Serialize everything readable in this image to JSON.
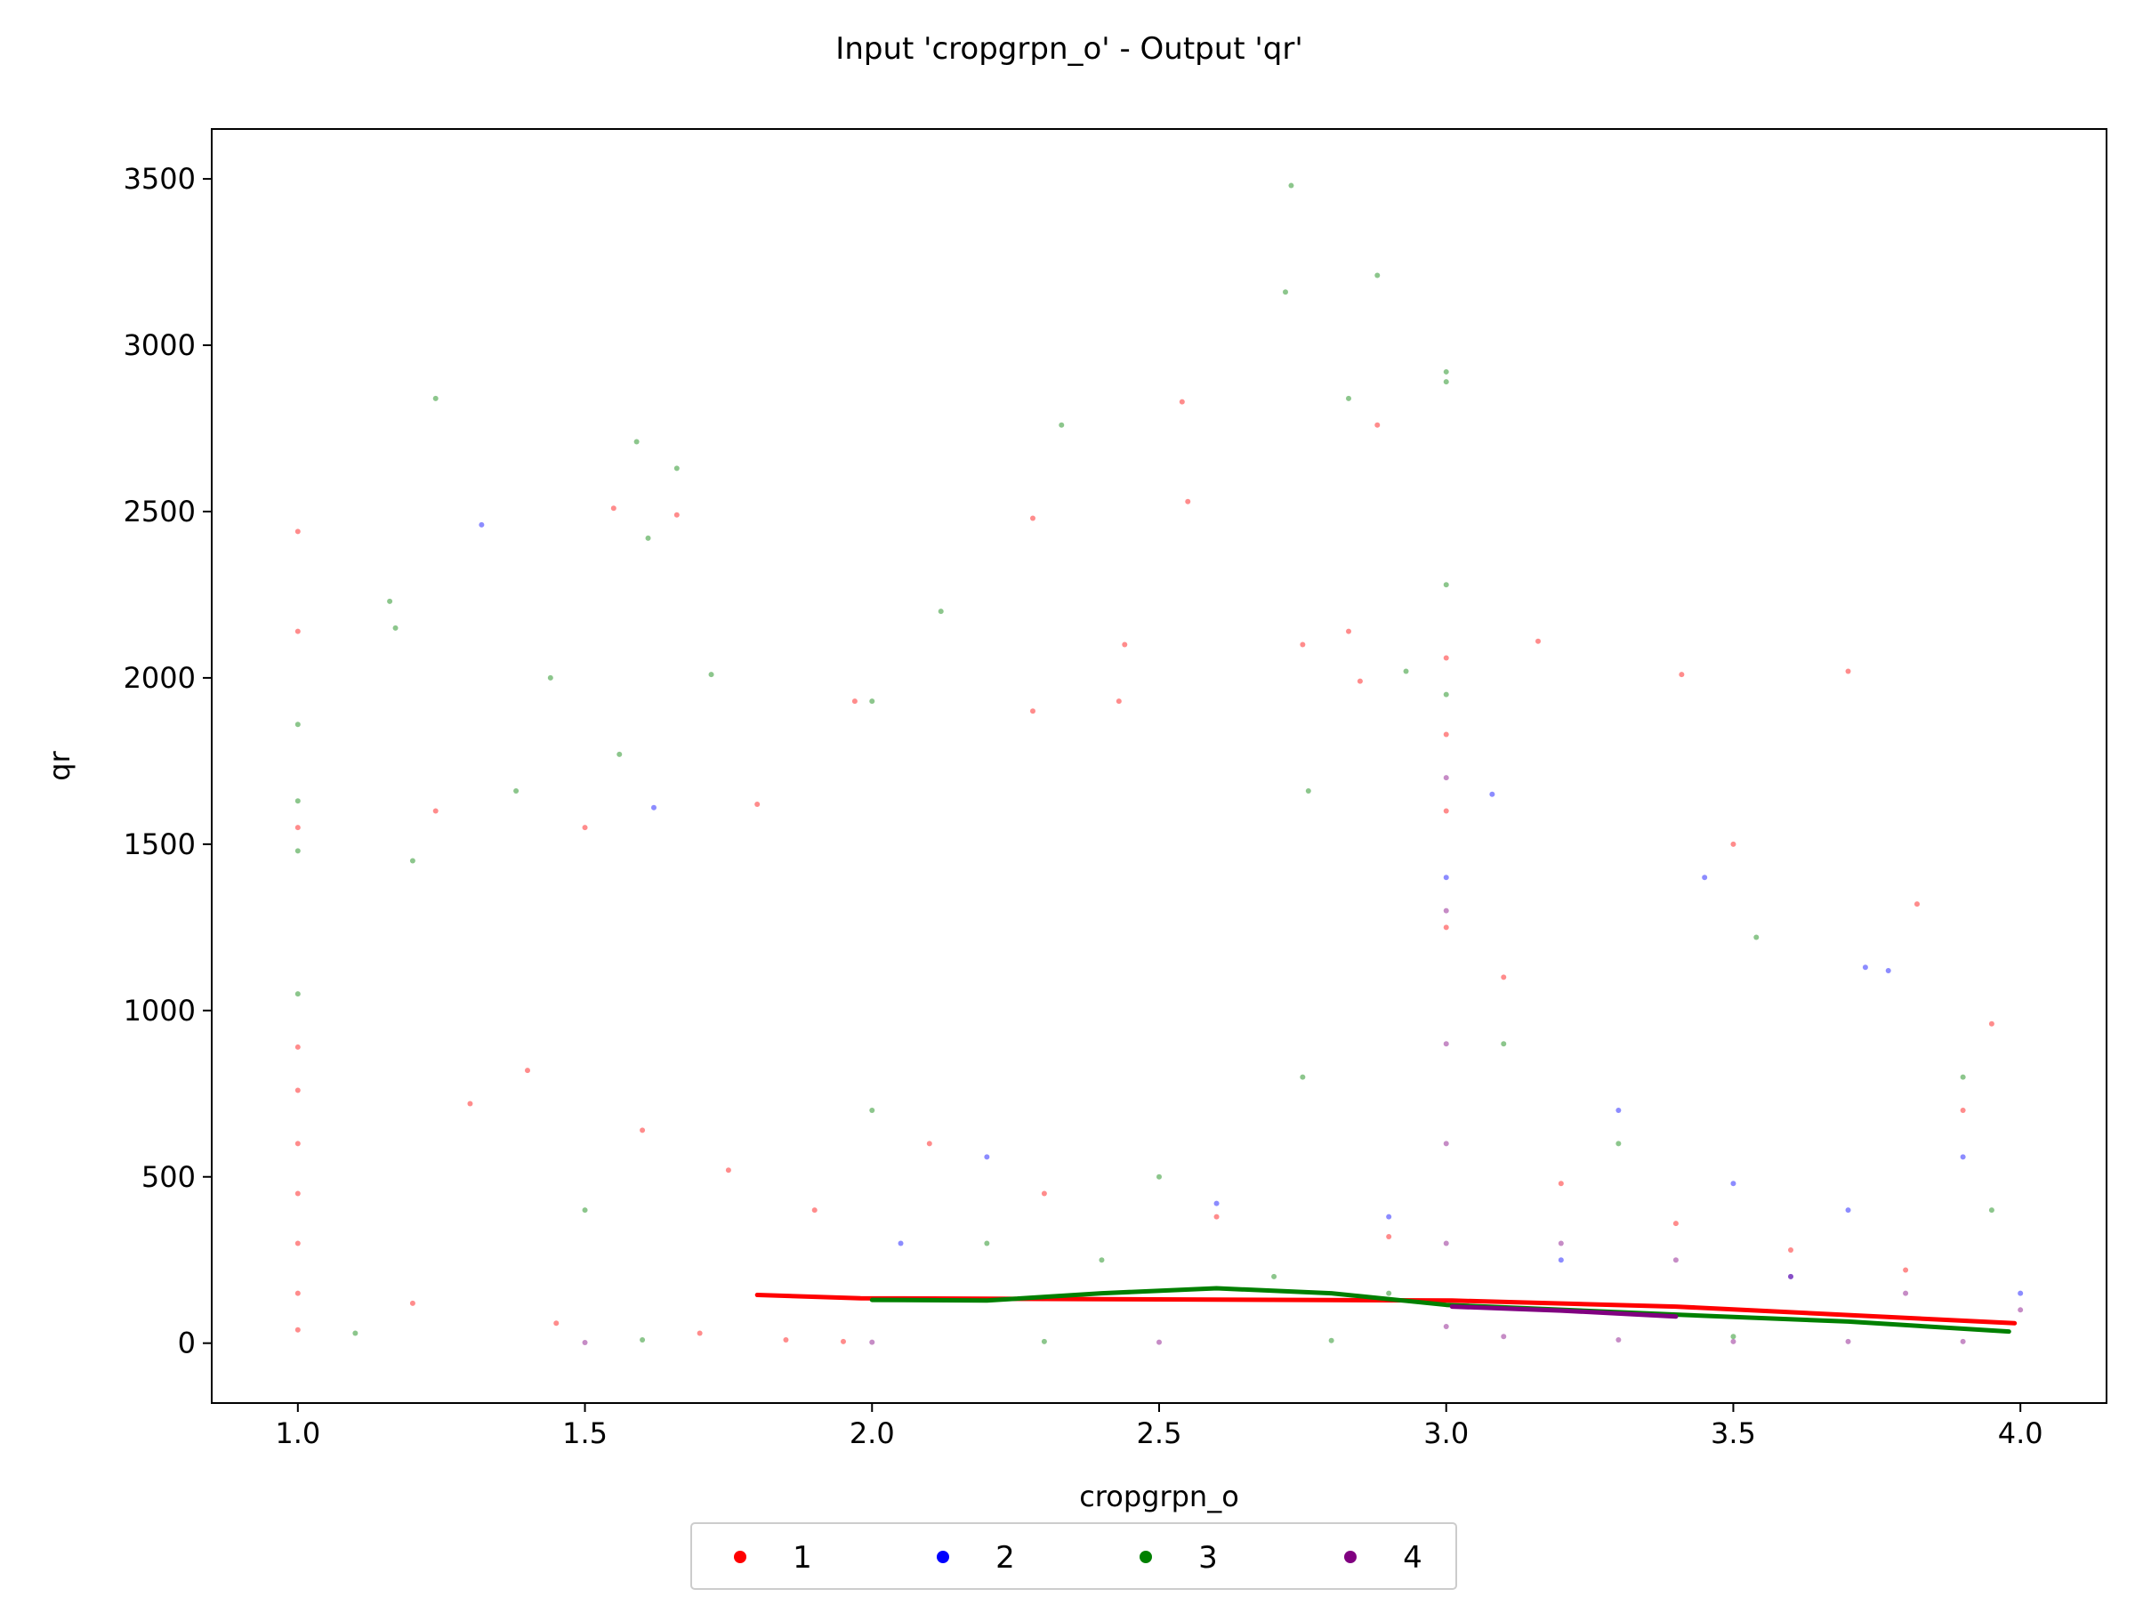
{
  "chart_data": {
    "type": "scatter",
    "title": "Input 'cropgrpn_o' - Output 'qr'",
    "xlabel": "cropgrpn_o",
    "ylabel": "qr",
    "xlim": [
      0.85,
      4.15
    ],
    "ylim": [
      -180,
      3650
    ],
    "xticks": [
      1.0,
      1.5,
      2.0,
      2.5,
      3.0,
      3.5,
      4.0
    ],
    "xtick_labels": [
      "1.0",
      "1.5",
      "2.0",
      "2.5",
      "3.0",
      "3.5",
      "4.0"
    ],
    "yticks": [
      0,
      500,
      1000,
      1500,
      2000,
      2500,
      3000,
      3500
    ],
    "ytick_labels": [
      "0",
      "500",
      "1000",
      "1500",
      "2000",
      "2500",
      "3000",
      "3500"
    ],
    "grid": false,
    "legend_position": "bottom-center",
    "series": [
      {
        "name": "1",
        "color": "#ff0000",
        "points": [
          [
            1.0,
            2440
          ],
          [
            1.0,
            2140
          ],
          [
            1.0,
            1550
          ],
          [
            1.0,
            890
          ],
          [
            1.0,
            760
          ],
          [
            1.0,
            600
          ],
          [
            1.0,
            450
          ],
          [
            1.0,
            300
          ],
          [
            1.0,
            150
          ],
          [
            1.0,
            40
          ],
          [
            1.55,
            2510
          ],
          [
            1.66,
            2490
          ],
          [
            1.24,
            1600
          ],
          [
            1.5,
            1550
          ],
          [
            1.8,
            1620
          ],
          [
            1.97,
            1930
          ],
          [
            2.28,
            1900
          ],
          [
            2.43,
            1930
          ],
          [
            2.44,
            2100
          ],
          [
            2.54,
            2830
          ],
          [
            2.55,
            2530
          ],
          [
            2.28,
            2480
          ],
          [
            2.88,
            2760
          ],
          [
            2.75,
            2100
          ],
          [
            2.83,
            2140
          ],
          [
            2.85,
            1990
          ],
          [
            3.0,
            2060
          ],
          [
            3.0,
            1830
          ],
          [
            3.0,
            1600
          ],
          [
            3.0,
            1250
          ],
          [
            3.1,
            1100
          ],
          [
            3.16,
            2110
          ],
          [
            3.41,
            2010
          ],
          [
            3.5,
            1500
          ],
          [
            3.82,
            1320
          ],
          [
            3.7,
            2020
          ],
          [
            3.95,
            960
          ],
          [
            1.3,
            720
          ],
          [
            1.4,
            820
          ],
          [
            1.6,
            640
          ],
          [
            1.75,
            520
          ],
          [
            1.9,
            400
          ],
          [
            2.1,
            600
          ],
          [
            2.3,
            450
          ],
          [
            2.6,
            380
          ],
          [
            2.9,
            320
          ],
          [
            3.2,
            480
          ],
          [
            3.4,
            360
          ],
          [
            3.6,
            280
          ],
          [
            3.8,
            220
          ],
          [
            3.9,
            700
          ],
          [
            1.2,
            120
          ],
          [
            1.45,
            60
          ],
          [
            1.7,
            30
          ],
          [
            1.85,
            10
          ],
          [
            1.95,
            5
          ]
        ],
        "trend": [
          [
            1.8,
            145
          ],
          [
            1.98,
            135
          ],
          [
            3.01,
            128
          ],
          [
            3.4,
            110
          ],
          [
            3.99,
            60
          ]
        ]
      },
      {
        "name": "2",
        "color": "#0000ff",
        "points": [
          [
            1.32,
            2460
          ],
          [
            1.62,
            1610
          ],
          [
            3.08,
            1650
          ],
          [
            3.45,
            1400
          ],
          [
            3.77,
            1120
          ],
          [
            3.73,
            1130
          ],
          [
            3.0,
            1400
          ],
          [
            3.3,
            700
          ],
          [
            2.2,
            560
          ],
          [
            2.6,
            420
          ],
          [
            3.5,
            480
          ],
          [
            3.9,
            560
          ],
          [
            3.7,
            400
          ],
          [
            2.05,
            300
          ],
          [
            2.9,
            380
          ],
          [
            3.2,
            250
          ],
          [
            3.6,
            200
          ],
          [
            4.0,
            150
          ]
        ],
        "trend": []
      },
      {
        "name": "3",
        "color": "#008000",
        "points": [
          [
            2.73,
            3480
          ],
          [
            2.72,
            3160
          ],
          [
            2.88,
            3210
          ],
          [
            3.0,
            2920
          ],
          [
            3.0,
            2890
          ],
          [
            1.24,
            2840
          ],
          [
            2.33,
            2760
          ],
          [
            2.83,
            2840
          ],
          [
            1.59,
            2710
          ],
          [
            1.66,
            2630
          ],
          [
            1.61,
            2420
          ],
          [
            1.16,
            2230
          ],
          [
            1.17,
            2150
          ],
          [
            2.12,
            2200
          ],
          [
            1.72,
            2010
          ],
          [
            1.44,
            2000
          ],
          [
            2.0,
            1930
          ],
          [
            3.0,
            2280
          ],
          [
            1.0,
            1860
          ],
          [
            1.0,
            1630
          ],
          [
            1.0,
            1480
          ],
          [
            1.56,
            1770
          ],
          [
            2.93,
            2020
          ],
          [
            3.0,
            1950
          ],
          [
            1.38,
            1660
          ],
          [
            1.2,
            1450
          ],
          [
            2.76,
            1660
          ],
          [
            3.54,
            1220
          ],
          [
            1.0,
            1050
          ],
          [
            3.3,
            600
          ],
          [
            2.5,
            500
          ],
          [
            2.0,
            700
          ],
          [
            1.5,
            400
          ],
          [
            2.75,
            800
          ],
          [
            3.1,
            900
          ],
          [
            3.9,
            800
          ],
          [
            3.95,
            400
          ],
          [
            2.2,
            300
          ],
          [
            2.4,
            250
          ],
          [
            2.7,
            200
          ],
          [
            2.9,
            150
          ],
          [
            1.1,
            30
          ],
          [
            1.6,
            10
          ],
          [
            2.3,
            5
          ],
          [
            2.8,
            8
          ],
          [
            3.5,
            20
          ]
        ],
        "trend": [
          [
            2.0,
            130
          ],
          [
            2.2,
            128
          ],
          [
            2.4,
            150
          ],
          [
            2.6,
            165
          ],
          [
            2.8,
            150
          ],
          [
            3.0,
            115
          ],
          [
            3.41,
            85
          ],
          [
            3.7,
            65
          ],
          [
            3.98,
            35
          ]
        ]
      },
      {
        "name": "4",
        "color": "#800080",
        "points": [
          [
            3.0,
            1700
          ],
          [
            3.0,
            1300
          ],
          [
            3.0,
            900
          ],
          [
            3.0,
            600
          ],
          [
            3.0,
            300
          ],
          [
            3.0,
            50
          ],
          [
            3.2,
            300
          ],
          [
            3.4,
            250
          ],
          [
            3.6,
            200
          ],
          [
            3.8,
            150
          ],
          [
            4.0,
            100
          ],
          [
            3.1,
            20
          ],
          [
            3.3,
            10
          ],
          [
            3.5,
            5
          ],
          [
            3.7,
            5
          ],
          [
            3.9,
            5
          ],
          [
            2.0,
            3
          ],
          [
            2.5,
            3
          ],
          [
            1.5,
            2
          ]
        ],
        "trend": [
          [
            3.01,
            110
          ],
          [
            3.2,
            98
          ],
          [
            3.4,
            80
          ]
        ]
      }
    ]
  }
}
